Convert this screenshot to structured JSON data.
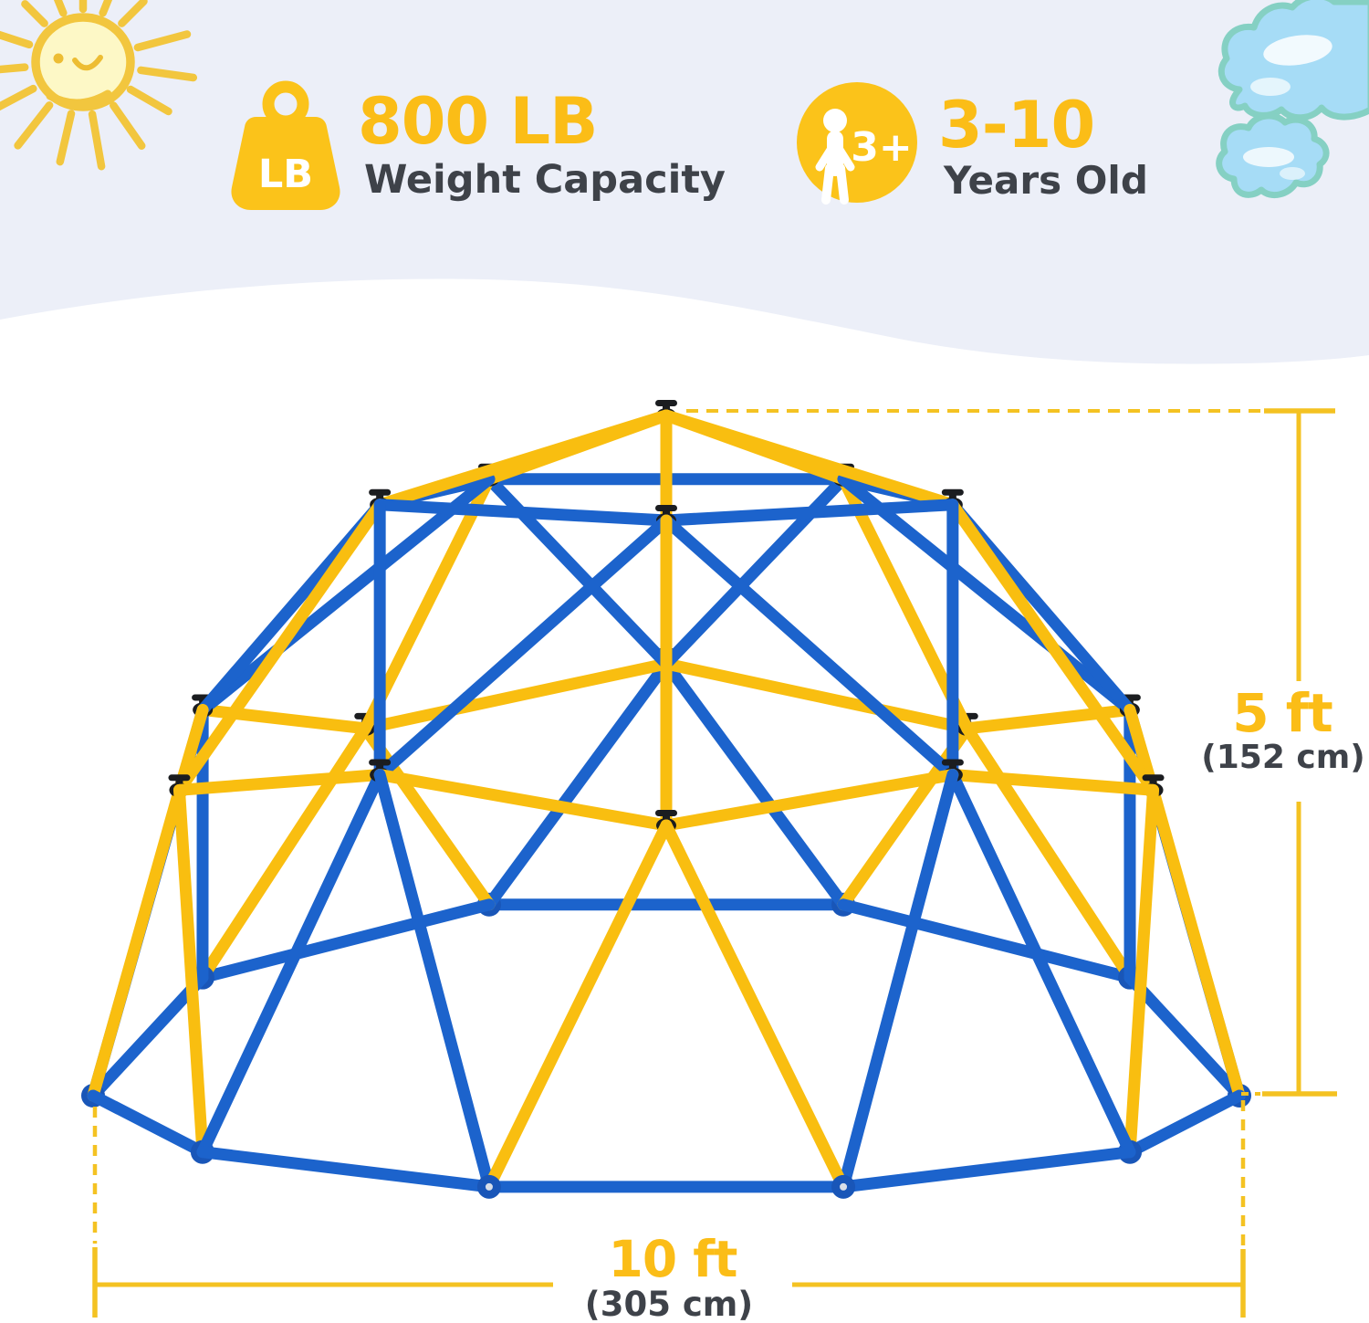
{
  "header": {
    "features": [
      {
        "icon": "weight-icon",
        "icon_label": "LB",
        "value": "800 LB",
        "label": "Weight Capacity"
      },
      {
        "icon": "child-icon",
        "badge": "3+",
        "value": "3-10",
        "label": "Years Old"
      }
    ]
  },
  "dimensions": {
    "height": {
      "value": "5 ft",
      "metric": "(152 cm)"
    },
    "width": {
      "value": "10 ft",
      "metric": "(305 cm)"
    }
  },
  "colors": {
    "accent_yellow": "#FBBD17",
    "text_dark": "#3E4249",
    "strut_yellow": "#F9BE10",
    "strut_blue": "#1C63CC",
    "knob_black": "#1B1D20",
    "joint_blue": "#1956B8",
    "dim_line": "#F4C222",
    "header_bg": "#ECEFF8",
    "sun_gold": "#F2C63E",
    "sun_fill": "#FDF8C6",
    "cloud_fill": "#A6DCF6",
    "cloud_stroke": "#85D0C3",
    "icon_yellow": "#FBC31A"
  }
}
